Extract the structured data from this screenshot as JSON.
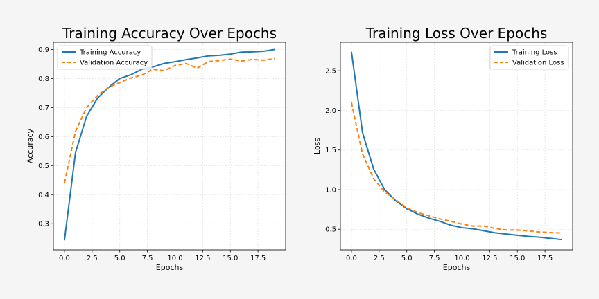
{
  "chart_data": [
    {
      "type": "line",
      "title": "Training Accuracy Over Epochs",
      "xlabel": "Epochs",
      "ylabel": "Accuracy",
      "xlim": [
        -1,
        20
      ],
      "ylim": [
        0.21,
        0.925
      ],
      "xticks": [
        0,
        2.5,
        5,
        7.5,
        10,
        12.5,
        15,
        17.5
      ],
      "xtick_labels": [
        "0.0",
        "2.5",
        "5.0",
        "7.5",
        "10.0",
        "12.5",
        "15.0",
        "17.5"
      ],
      "yticks": [
        0.3,
        0.4,
        0.5,
        0.6,
        0.7,
        0.8,
        0.9
      ],
      "ytick_labels": [
        "0.3",
        "0.4",
        "0.5",
        "0.6",
        "0.7",
        "0.8",
        "0.9"
      ],
      "grid": true,
      "legend_position": "upper-left",
      "x": [
        0,
        1,
        2,
        3,
        4,
        5,
        6,
        7,
        8,
        9,
        10,
        11,
        12,
        13,
        14,
        15,
        16,
        17,
        18,
        19
      ],
      "series": [
        {
          "name": "Training Accuracy",
          "color": "#1f77b4",
          "style": "solid",
          "values": [
            0.243,
            0.545,
            0.67,
            0.733,
            0.77,
            0.8,
            0.813,
            0.832,
            0.84,
            0.852,
            0.858,
            0.865,
            0.871,
            0.878,
            0.88,
            0.884,
            0.891,
            0.892,
            0.894,
            0.9
          ]
        },
        {
          "name": "Validation Accuracy",
          "color": "#ff7f0e",
          "style": "dashed",
          "values": [
            0.44,
            0.618,
            0.7,
            0.742,
            0.77,
            0.786,
            0.802,
            0.812,
            0.832,
            0.827,
            0.845,
            0.852,
            0.836,
            0.858,
            0.862,
            0.867,
            0.86,
            0.866,
            0.863,
            0.869
          ]
        }
      ]
    },
    {
      "type": "line",
      "title": "Training Loss Over Epochs",
      "xlabel": "Epochs",
      "ylabel": "Loss",
      "xlim": [
        -1,
        20
      ],
      "ylim": [
        0.24,
        2.86
      ],
      "xticks": [
        0,
        2.5,
        5,
        7.5,
        10,
        12.5,
        15,
        17.5
      ],
      "xtick_labels": [
        "0.0",
        "2.5",
        "5.0",
        "7.5",
        "10.0",
        "12.5",
        "15.0",
        "17.5"
      ],
      "yticks": [
        0.5,
        1.0,
        1.5,
        2.0,
        2.5
      ],
      "ytick_labels": [
        "0.5",
        "1.0",
        "1.5",
        "2.0",
        "2.5"
      ],
      "grid": true,
      "legend_position": "upper-right",
      "x": [
        0,
        1,
        2,
        3,
        4,
        5,
        6,
        7,
        8,
        9,
        10,
        11,
        12,
        13,
        14,
        15,
        16,
        17,
        18,
        19
      ],
      "series": [
        {
          "name": "Training Loss",
          "color": "#1f77b4",
          "style": "solid",
          "values": [
            2.74,
            1.72,
            1.26,
            1.0,
            0.86,
            0.76,
            0.69,
            0.64,
            0.6,
            0.55,
            0.52,
            0.505,
            0.48,
            0.455,
            0.44,
            0.425,
            0.41,
            0.4,
            0.385,
            0.37
          ]
        },
        {
          "name": "Validation Loss",
          "color": "#ff7f0e",
          "style": "dashed",
          "values": [
            2.1,
            1.45,
            1.14,
            0.97,
            0.87,
            0.77,
            0.71,
            0.67,
            0.63,
            0.6,
            0.565,
            0.54,
            0.54,
            0.51,
            0.49,
            0.49,
            0.48,
            0.465,
            0.458,
            0.452
          ]
        }
      ]
    }
  ]
}
